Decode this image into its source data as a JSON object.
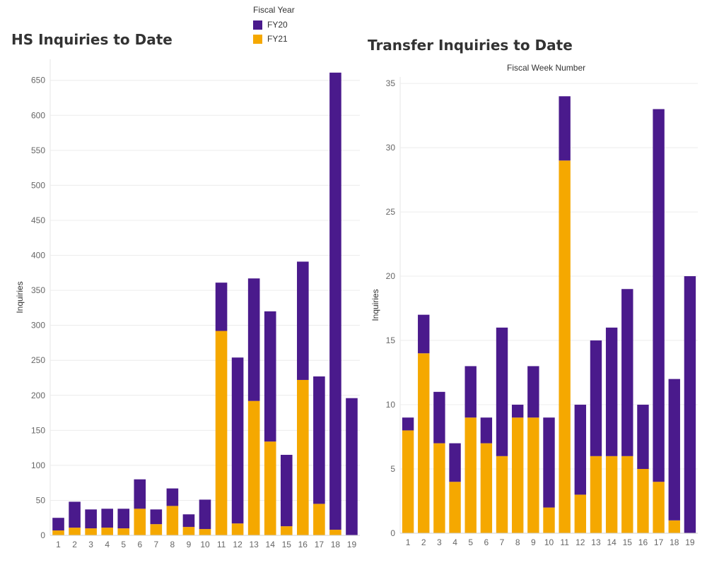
{
  "legend": {
    "title": "Fiscal Year",
    "items": [
      {
        "label": "FY20",
        "color": "#4a1a8c"
      },
      {
        "label": "FY21",
        "color": "#f5a800"
      }
    ]
  },
  "chart_data": [
    {
      "type": "bar",
      "stacked": true,
      "title": "HS Inquiries to Date",
      "xlabel": "",
      "ylabel": "Inquiries",
      "ylim": [
        0,
        680
      ],
      "yticks": [
        0,
        50,
        100,
        150,
        200,
        250,
        300,
        350,
        400,
        450,
        500,
        550,
        600,
        650
      ],
      "grid": true,
      "categories": [
        "1",
        "2",
        "3",
        "4",
        "5",
        "6",
        "7",
        "8",
        "9",
        "10",
        "11",
        "12",
        "13",
        "14",
        "15",
        "16",
        "17",
        "18",
        "19"
      ],
      "series": [
        {
          "name": "FY21",
          "color": "#f5a800",
          "values": [
            7,
            11,
            10,
            11,
            10,
            38,
            16,
            42,
            12,
            9,
            292,
            17,
            192,
            134,
            13,
            222,
            45,
            8,
            0
          ]
        },
        {
          "name": "FY20",
          "color": "#4a1a8c",
          "values": [
            18,
            37,
            27,
            27,
            28,
            42,
            21,
            25,
            18,
            42,
            69,
            237,
            175,
            186,
            102,
            169,
            182,
            653,
            196
          ]
        }
      ]
    },
    {
      "type": "bar",
      "stacked": true,
      "title": "Transfer Inquiries to Date",
      "subtitle": "Fiscal Week Number",
      "xlabel": "",
      "ylabel": "Inquiries",
      "ylim": [
        0,
        35.5
      ],
      "yticks": [
        0,
        5,
        10,
        15,
        20,
        25,
        30,
        35
      ],
      "grid": true,
      "categories": [
        "1",
        "2",
        "3",
        "4",
        "5",
        "6",
        "7",
        "8",
        "9",
        "10",
        "11",
        "12",
        "13",
        "14",
        "15",
        "16",
        "17",
        "18",
        "19"
      ],
      "series": [
        {
          "name": "FY21",
          "color": "#f5a800",
          "values": [
            8,
            14,
            7,
            4,
            9,
            7,
            6,
            9,
            9,
            2,
            29,
            3,
            6,
            6,
            6,
            5,
            4,
            1,
            0
          ]
        },
        {
          "name": "FY20",
          "color": "#4a1a8c",
          "values": [
            1,
            3,
            4,
            3,
            4,
            2,
            10,
            1,
            4,
            7,
            5,
            7,
            9,
            10,
            13,
            5,
            29,
            11,
            20
          ]
        }
      ]
    }
  ]
}
